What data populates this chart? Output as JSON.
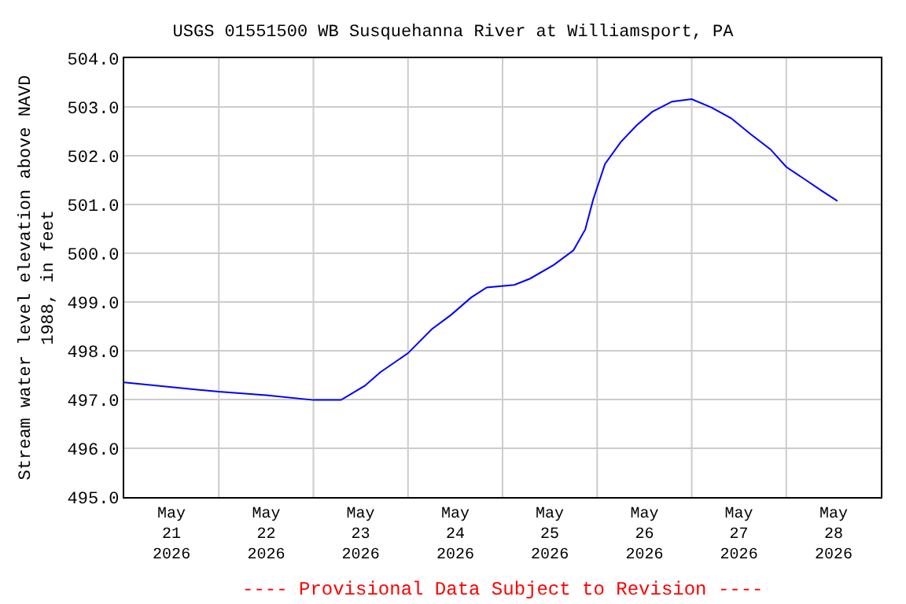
{
  "chart_data": {
    "type": "line",
    "title": "USGS 01551500 WB Susquehanna River at Williamsport, PA",
    "ylabel": "Stream water level elevation above NAVD\n1988, in feet",
    "annotations": [
      "---- Provisional Data Subject to Revision ----"
    ],
    "x": [
      "2026-05-21T00:00",
      "2026-05-22T00:00",
      "2026-05-22T12:00",
      "2026-05-23T00:00",
      "2026-05-23T07:00",
      "2026-05-23T13:00",
      "2026-05-23T17:00",
      "2026-05-24T00:00",
      "2026-05-24T06:00",
      "2026-05-24T11:00",
      "2026-05-24T16:00",
      "2026-05-24T20:00",
      "2026-05-25T03:00",
      "2026-05-25T07:00",
      "2026-05-25T13:00",
      "2026-05-25T18:00",
      "2026-05-25T21:00",
      "2026-05-25T23:00",
      "2026-05-26T02:00",
      "2026-05-26T06:00",
      "2026-05-26T10:00",
      "2026-05-26T14:00",
      "2026-05-26T19:00",
      "2026-05-27T00:00",
      "2026-05-27T05:00",
      "2026-05-27T10:00",
      "2026-05-27T15:00",
      "2026-05-27T20:00",
      "2026-05-28T00:00",
      "2026-05-28T05:00",
      "2026-05-28T09:00",
      "2026-05-28T13:00"
    ],
    "series": [
      {
        "color": "#0000ff",
        "values": [
          497.35,
          497.16,
          497.09,
          496.99,
          496.99,
          497.28,
          497.56,
          497.95,
          498.44,
          498.74,
          499.09,
          499.3,
          499.35,
          499.48,
          499.76,
          500.06,
          500.49,
          501.1,
          501.83,
          502.28,
          502.62,
          502.9,
          503.11,
          503.16,
          502.99,
          502.77,
          502.44,
          502.13,
          501.77,
          501.5,
          501.28,
          501.07
        ]
      }
    ],
    "xlim": [
      "2026-05-21T00:00",
      "2026-05-29T00:00"
    ],
    "xticks": [
      {
        "value": "2026-05-21T12:00",
        "label": "May\n21\n2026"
      },
      {
        "value": "2026-05-22T12:00",
        "label": "May\n22\n2026"
      },
      {
        "value": "2026-05-23T12:00",
        "label": "May\n23\n2026"
      },
      {
        "value": "2026-05-24T12:00",
        "label": "May\n24\n2026"
      },
      {
        "value": "2026-05-25T12:00",
        "label": "May\n25\n2026"
      },
      {
        "value": "2026-05-26T12:00",
        "label": "May\n26\n2026"
      },
      {
        "value": "2026-05-27T12:00",
        "label": "May\n27\n2026"
      },
      {
        "value": "2026-05-28T12:00",
        "label": "May\n28\n2026"
      },
      {
        "value": "2026-05-22T00:00",
        "label": null
      },
      {
        "value": "2026-05-23T00:00",
        "label": null
      },
      {
        "value": "2026-05-24T00:00",
        "label": null
      },
      {
        "value": "2026-05-25T00:00",
        "label": null
      },
      {
        "value": "2026-05-26T00:00",
        "label": null
      },
      {
        "value": "2026-05-27T00:00",
        "label": null
      },
      {
        "value": "2026-05-28T00:00",
        "label": null
      }
    ],
    "ylim": [
      495,
      504
    ],
    "yticks": [
      {
        "value": 495,
        "label": "495.0"
      },
      {
        "value": 496,
        "label": "496.0"
      },
      {
        "value": 497,
        "label": "497.0"
      },
      {
        "value": 498,
        "label": "498.0"
      },
      {
        "value": 499,
        "label": "499.0"
      },
      {
        "value": 500,
        "label": "500.0"
      },
      {
        "value": 501,
        "label": "501.0"
      },
      {
        "value": 502,
        "label": "502.0"
      },
      {
        "value": 503,
        "label": "503.0"
      },
      {
        "value": 504,
        "label": "504.0"
      }
    ],
    "grid": true,
    "marker": "none",
    "line_style": "solid"
  }
}
